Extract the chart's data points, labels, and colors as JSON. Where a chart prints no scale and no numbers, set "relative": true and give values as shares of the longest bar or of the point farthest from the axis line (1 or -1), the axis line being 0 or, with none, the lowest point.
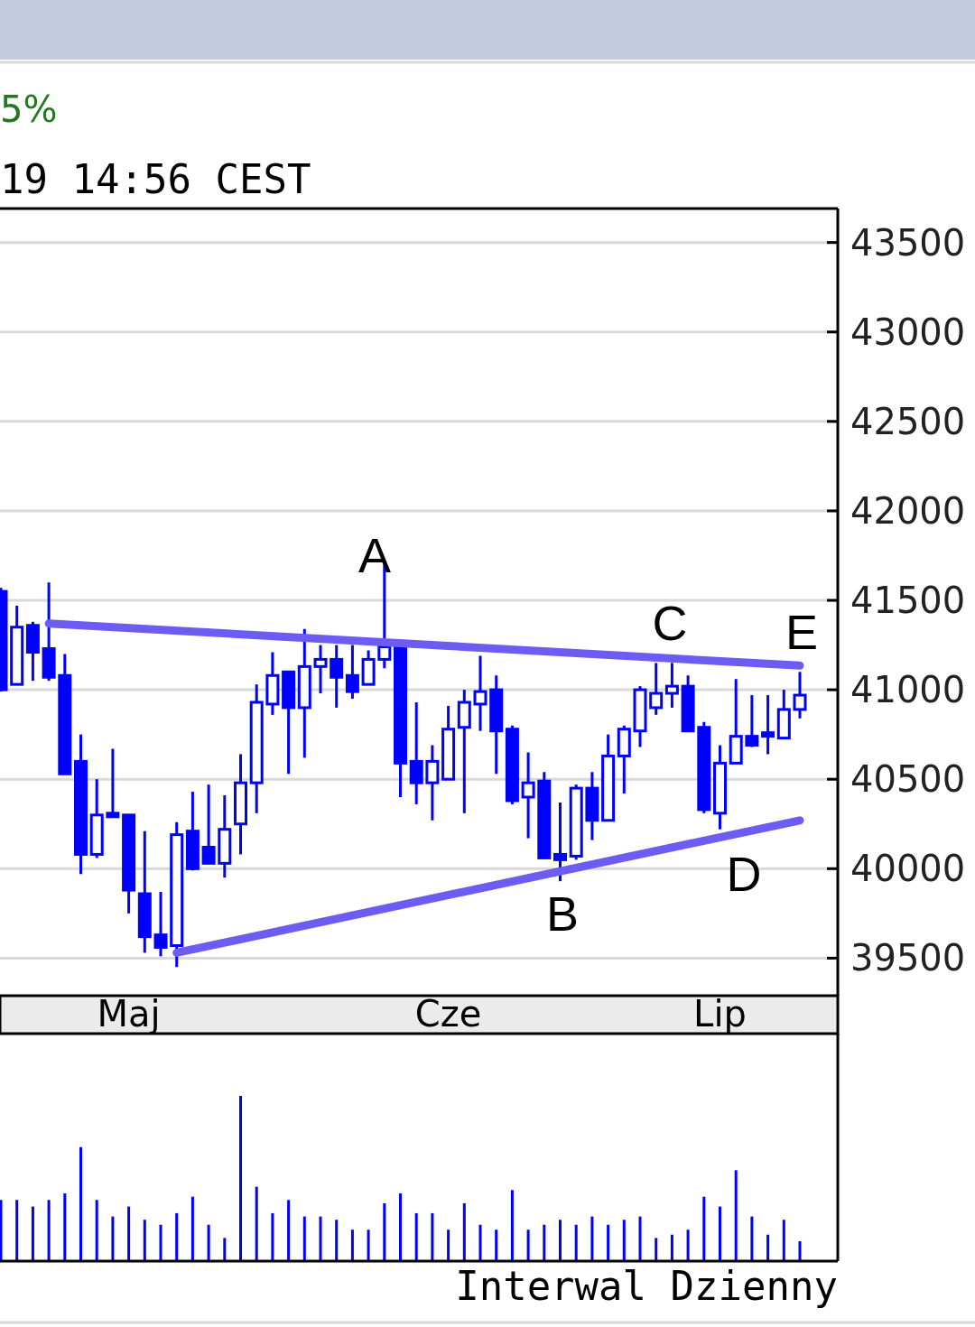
{
  "chart_data": [
    {
      "type": "candlestick",
      "title": "5%",
      "subtitle": "19 14:56 CEST",
      "color": "#0000ff",
      "grid": "y",
      "categories": [
        null,
        null,
        null,
        null,
        null,
        null,
        null,
        null,
        "Maj",
        null,
        null,
        null,
        null,
        null,
        null,
        null,
        null,
        null,
        null,
        null,
        null,
        null,
        null,
        null,
        null,
        null,
        null,
        null,
        "Cze",
        null,
        null,
        null,
        null,
        null,
        null,
        null,
        null,
        null,
        null,
        null,
        null,
        null,
        null,
        null,
        null,
        "Lip",
        null,
        null,
        null,
        null,
        null
      ],
      "ohlc": [
        [
          41550,
          41570,
          40990,
          41000
        ],
        [
          41030,
          41470,
          41030,
          41350
        ],
        [
          41360,
          41380,
          41050,
          41210
        ],
        [
          41230,
          41600,
          41050,
          41070
        ],
        [
          41080,
          41200,
          40530,
          40530
        ],
        [
          40600,
          40750,
          39970,
          40080
        ],
        [
          40080,
          40500,
          40060,
          40300
        ],
        [
          40310,
          40670,
          40290,
          40290
        ],
        [
          40300,
          40300,
          39750,
          39880
        ],
        [
          39860,
          40210,
          39530,
          39620
        ],
        [
          39630,
          39870,
          39510,
          39560
        ],
        [
          39570,
          40260,
          39450,
          40190
        ],
        [
          40210,
          40430,
          39990,
          40000
        ],
        [
          40120,
          40470,
          40030,
          40030
        ],
        [
          40030,
          40410,
          39950,
          40220
        ],
        [
          40250,
          40640,
          40080,
          40480
        ],
        [
          40480,
          41030,
          40310,
          40930
        ],
        [
          40920,
          41210,
          40860,
          41080
        ],
        [
          41100,
          41100,
          40530,
          40900
        ],
        [
          40900,
          41340,
          40620,
          41130
        ],
        [
          41130,
          41250,
          40980,
          41170
        ],
        [
          41170,
          41250,
          40900,
          41070
        ],
        [
          41080,
          41250,
          40950,
          40990
        ],
        [
          41030,
          41220,
          41030,
          41170
        ],
        [
          41170,
          41700,
          41120,
          41240
        ],
        [
          41240,
          41240,
          40400,
          40590
        ],
        [
          40600,
          40930,
          40360,
          40480
        ],
        [
          40480,
          40690,
          40270,
          40600
        ],
        [
          40500,
          40910,
          40500,
          40780
        ],
        [
          40790,
          41000,
          40310,
          40930
        ],
        [
          40920,
          41190,
          40770,
          40990
        ],
        [
          41000,
          41080,
          40530,
          40770
        ],
        [
          40780,
          40800,
          40360,
          40380
        ],
        [
          40400,
          40650,
          40170,
          40480
        ],
        [
          40490,
          40540,
          40060,
          40060
        ],
        [
          40080,
          40370,
          39930,
          40050
        ],
        [
          40070,
          40470,
          40050,
          40450
        ],
        [
          40450,
          40540,
          40160,
          40270
        ],
        [
          40270,
          40750,
          40270,
          40630
        ],
        [
          40630,
          40800,
          40420,
          40780
        ],
        [
          40770,
          41020,
          40680,
          41000
        ],
        [
          40900,
          41150,
          40860,
          40980
        ],
        [
          40980,
          41150,
          40900,
          41020
        ],
        [
          41020,
          41080,
          40770,
          40770
        ],
        [
          40790,
          40820,
          40310,
          40330
        ],
        [
          40310,
          40690,
          40220,
          40590
        ],
        [
          40590,
          41060,
          40590,
          40740
        ],
        [
          40740,
          40970,
          40680,
          40690
        ],
        [
          40760,
          40970,
          40640,
          40740
        ],
        [
          40730,
          41000,
          40730,
          40890
        ],
        [
          40890,
          41100,
          40840,
          40970
        ]
      ],
      "ylim": [
        39290,
        43690
      ],
      "yticks": [
        39500,
        40000,
        40500,
        41000,
        41500,
        42000,
        42500,
        43000,
        43500
      ],
      "series": [
        {
          "type": "line",
          "color": "#6c5cf2",
          "values": [
            null,
            null,
            null,
            41370,
            null,
            null,
            null,
            null,
            null,
            null,
            null,
            null,
            null,
            null,
            null,
            null,
            null,
            null,
            null,
            null,
            null,
            null,
            null,
            null,
            null,
            null,
            null,
            null,
            null,
            null,
            null,
            null,
            null,
            null,
            null,
            null,
            null,
            null,
            null,
            null,
            null,
            null,
            null,
            null,
            null,
            null,
            null,
            null,
            null,
            null,
            41135
          ]
        },
        {
          "type": "line",
          "color": "#6c5cf2",
          "values": [
            null,
            null,
            null,
            null,
            null,
            null,
            null,
            null,
            null,
            null,
            null,
            39530,
            null,
            null,
            null,
            null,
            null,
            null,
            null,
            null,
            null,
            null,
            null,
            null,
            null,
            null,
            null,
            null,
            null,
            null,
            null,
            null,
            null,
            null,
            null,
            null,
            null,
            null,
            null,
            null,
            null,
            null,
            null,
            null,
            null,
            null,
            null,
            null,
            null,
            null,
            40270
          ]
        }
      ],
      "annotations": [
        "A",
        "B",
        "C",
        "D",
        "E",
        "Interwal Dzienny"
      ]
    },
    {
      "type": "bar",
      "relative": true,
      "color": "#0000ff",
      "categories": [
        null,
        null,
        null,
        null,
        null,
        null,
        null,
        null,
        null,
        null,
        null,
        null,
        null,
        null,
        null,
        null,
        null,
        null,
        null,
        null,
        null,
        null,
        null,
        null,
        null,
        null,
        null,
        null,
        null,
        null,
        null,
        null,
        null,
        null,
        null,
        null,
        null,
        null,
        null,
        null,
        null,
        null,
        null,
        null,
        null,
        null,
        null,
        null,
        null,
        null,
        null
      ],
      "values": [
        0.37,
        0.37,
        0.33,
        0.37,
        0.41,
        0.69,
        0.37,
        0.27,
        0.33,
        0.25,
        0.22,
        0.29,
        0.39,
        0.22,
        0.14,
        1,
        0.45,
        0.29,
        0.37,
        0.27,
        0.27,
        0.25,
        0.19,
        0.19,
        0.35,
        0.41,
        0.29,
        0.29,
        0.19,
        0.35,
        0.22,
        0.19,
        0.43,
        0.19,
        0.22,
        0.25,
        0.22,
        0.27,
        0.22,
        0.25,
        0.27,
        0.14,
        0.16,
        0.19,
        0.39,
        0.33,
        0.55,
        0.27,
        0.16,
        0.25,
        0.12
      ]
    }
  ]
}
